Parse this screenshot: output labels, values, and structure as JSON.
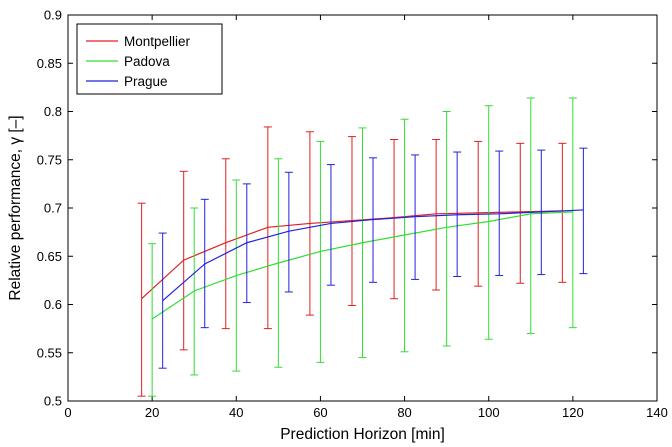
{
  "chart_data": {
    "type": "line",
    "title": "",
    "xlabel": "Prediction Horizon [min]",
    "ylabel": "Relative performance, γ [–]",
    "xlim": [
      0,
      140
    ],
    "ylim": [
      0.5,
      0.9
    ],
    "xticks": [
      0,
      20,
      40,
      60,
      80,
      100,
      120,
      140
    ],
    "yticks": [
      0.5,
      0.55,
      0.6,
      0.65,
      0.7,
      0.75,
      0.8,
      0.85,
      0.9
    ],
    "grid": false,
    "legend_position": "top-left",
    "error_bars": true,
    "series": [
      {
        "name": "Montpellier",
        "color": "#e02020",
        "x": [
          17.5,
          27.5,
          37.5,
          47.5,
          57.5,
          67.5,
          77.5,
          87.5,
          97.5,
          107.5,
          117.5
        ],
        "y": [
          0.606,
          0.646,
          0.664,
          0.68,
          0.684,
          0.687,
          0.69,
          0.694,
          0.695,
          0.696,
          0.697
        ],
        "err_low": [
          0.505,
          0.553,
          0.575,
          0.575,
          0.589,
          0.599,
          0.606,
          0.615,
          0.619,
          0.622,
          0.623
        ],
        "err_high": [
          0.705,
          0.738,
          0.751,
          0.784,
          0.779,
          0.774,
          0.771,
          0.771,
          0.769,
          0.767,
          0.767
        ]
      },
      {
        "name": "Padova",
        "color": "#33dd33",
        "x": [
          20,
          30,
          40,
          50,
          60,
          70,
          80,
          90,
          100,
          110,
          120
        ],
        "y": [
          0.585,
          0.614,
          0.63,
          0.643,
          0.655,
          0.664,
          0.672,
          0.68,
          0.686,
          0.694,
          0.696
        ],
        "err_low": [
          0.505,
          0.527,
          0.531,
          0.535,
          0.54,
          0.545,
          0.551,
          0.557,
          0.564,
          0.57,
          0.576
        ],
        "err_high": [
          0.663,
          0.7,
          0.729,
          0.751,
          0.769,
          0.783,
          0.792,
          0.8,
          0.806,
          0.814,
          0.814
        ]
      },
      {
        "name": "Prague",
        "color": "#2222dd",
        "x": [
          22.5,
          32.5,
          42.5,
          52.5,
          62.5,
          72.5,
          82.5,
          92.5,
          102.5,
          112.5,
          122.5
        ],
        "y": [
          0.604,
          0.642,
          0.664,
          0.676,
          0.684,
          0.688,
          0.691,
          0.693,
          0.694,
          0.696,
          0.698
        ],
        "err_low": [
          0.534,
          0.576,
          0.602,
          0.613,
          0.62,
          0.623,
          0.626,
          0.629,
          0.63,
          0.631,
          0.632
        ],
        "err_high": [
          0.674,
          0.709,
          0.725,
          0.737,
          0.745,
          0.752,
          0.755,
          0.758,
          0.759,
          0.76,
          0.762
        ]
      }
    ]
  }
}
